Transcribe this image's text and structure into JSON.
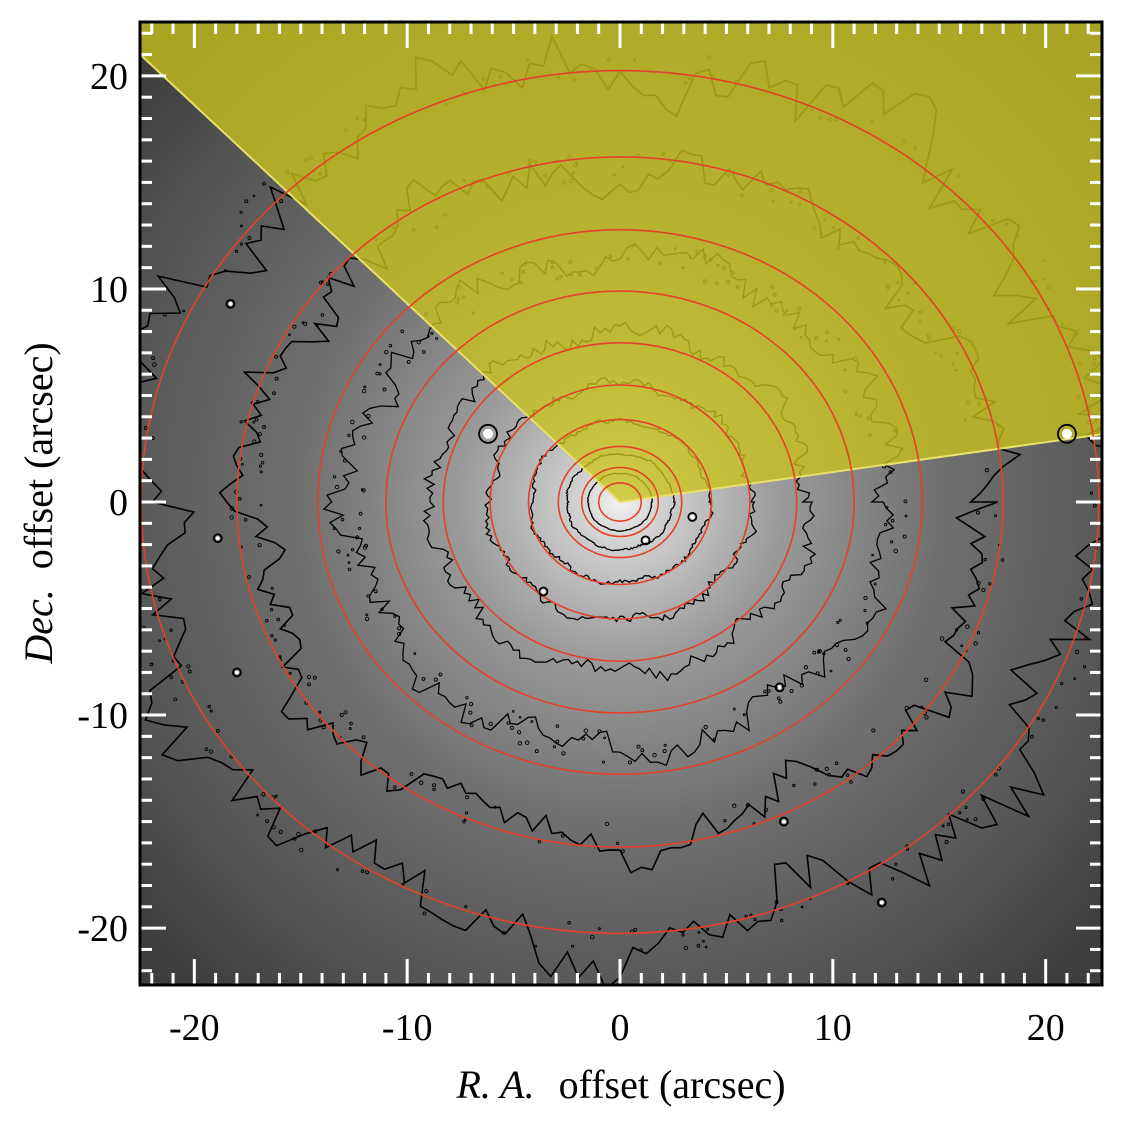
{
  "chart_data": {
    "type": "image",
    "xlabel_italic": "R. A.",
    "xlabel_rest": "offset (arcsec)",
    "ylabel_italic": "Dec.",
    "ylabel_rest": "offset (arcsec)",
    "xlim": [
      -22.6,
      22.6
    ],
    "ylim": [
      -22.6,
      22.6
    ],
    "xticks": [
      -20,
      -10,
      0,
      10,
      20
    ],
    "yticks": [
      20,
      10,
      0,
      -10,
      -20
    ],
    "xtick_labels": [
      "-20",
      "-10",
      "0",
      "10",
      "20"
    ],
    "ytick_labels": [
      "20",
      "10",
      "0",
      "-10",
      "-20"
    ],
    "minor_tick_step": 1,
    "ellipse_semi_major_arcsec": [
      1.0,
      1.8,
      2.9,
      4.3,
      6.1,
      8.3,
      11.0,
      14.2,
      18.0,
      22.5
    ],
    "ellipse_axis_ratio": 0.9,
    "ellipse_colour": "#e4402a",
    "contour_radii_arcsec": [
      1.5,
      2.5,
      4.2,
      6.2,
      8.9,
      12.8,
      17.5,
      22.8
    ],
    "contour_colour": "#000000",
    "masked_sector": {
      "start_angle_deg": 8,
      "end_angle_deg": 137,
      "colour": "#c8c21a"
    },
    "point_sources": [
      {
        "x": -6.2,
        "y": 3.2
      },
      {
        "x": 21.0,
        "y": 3.2
      },
      {
        "x": 3.4,
        "y": -0.7
      },
      {
        "x": 1.2,
        "y": -1.8
      },
      {
        "x": -3.6,
        "y": -4.2
      },
      {
        "x": -18.3,
        "y": 9.3
      },
      {
        "x": -18.9,
        "y": -1.7
      },
      {
        "x": -18.0,
        "y": -8.0
      },
      {
        "x": 7.7,
        "y": -15.0
      },
      {
        "x": 12.3,
        "y": -18.8
      },
      {
        "x": 7.5,
        "y": -8.7
      }
    ],
    "background_colours": {
      "centre": "#f0f0f0",
      "mid": "#8a8a8a",
      "edge": "#444444"
    }
  }
}
